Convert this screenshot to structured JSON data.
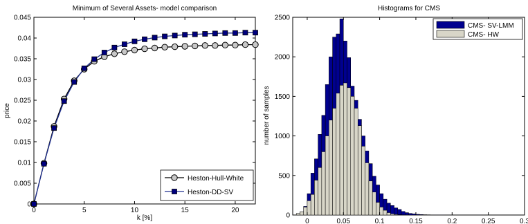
{
  "chart_data": [
    {
      "type": "line",
      "title": "Minimum of Several Assets- model comparison",
      "xlabel": "k [%]",
      "ylabel": "price",
      "xlim": [
        0,
        22
      ],
      "ylim": [
        0,
        0.045
      ],
      "xticks": [
        0,
        5,
        10,
        15,
        20
      ],
      "yticks": [
        0,
        0.005,
        0.01,
        0.015,
        0.02,
        0.025,
        0.03,
        0.035,
        0.04,
        0.045
      ],
      "ytick_labels": [
        "0",
        "0.005",
        "0.01",
        "0.015",
        "0.02",
        "0.025",
        "0.03",
        "0.035",
        "0.04",
        "0.045"
      ],
      "legend_position": "bottom-right",
      "series": [
        {
          "name": "Heston-Hull-White",
          "marker": "circle",
          "line_color": "#000000",
          "marker_fill": "#c8c8c8",
          "x": [
            0,
            1,
            2,
            3,
            4,
            5,
            6,
            7,
            8,
            9,
            10,
            11,
            12,
            13,
            14,
            15,
            16,
            17,
            18,
            19,
            20,
            21,
            22
          ],
          "values": [
            0,
            0.0098,
            0.0187,
            0.0253,
            0.0297,
            0.0325,
            0.0344,
            0.0355,
            0.0362,
            0.0367,
            0.0371,
            0.0374,
            0.0376,
            0.0378,
            0.0379,
            0.038,
            0.0381,
            0.0382,
            0.0382,
            0.0383,
            0.0383,
            0.0384,
            0.0384
          ]
        },
        {
          "name": "Heston-DD-SV",
          "marker": "square",
          "line_color": "#1f2f8f",
          "marker_fill": "#00007f",
          "x": [
            0,
            1,
            2,
            3,
            4,
            5,
            6,
            7,
            8,
            9,
            10,
            11,
            12,
            13,
            14,
            15,
            16,
            17,
            18,
            19,
            20,
            21,
            22
          ],
          "values": [
            0,
            0.0097,
            0.0183,
            0.0248,
            0.0294,
            0.0327,
            0.0349,
            0.0365,
            0.0377,
            0.0385,
            0.0392,
            0.0397,
            0.0401,
            0.0404,
            0.0406,
            0.0408,
            0.0409,
            0.041,
            0.0411,
            0.0412,
            0.0412,
            0.0413,
            0.0413
          ]
        }
      ]
    },
    {
      "type": "bar",
      "subtype": "histogram",
      "title": "Histograms for CMS",
      "xlabel": "",
      "ylabel": "number of samples",
      "xlim": [
        -0.02,
        0.3
      ],
      "ylim": [
        0,
        2500
      ],
      "xticks": [
        0,
        0.05,
        0.1,
        0.15,
        0.2,
        0.25,
        0.3
      ],
      "xtick_labels": [
        "0",
        "0.05",
        "0.1",
        "0.15",
        "0.2",
        "0.25",
        "0.3"
      ],
      "yticks": [
        0,
        500,
        1000,
        1500,
        2000,
        2500
      ],
      "ytick_labels": [
        "0",
        "500",
        "1000",
        "1500",
        "2000",
        "2500"
      ],
      "legend_position": "top-right",
      "bin_width": 0.005,
      "bin_start": -0.015,
      "series": [
        {
          "name": "CMS- SV-LMM",
          "color": "#00008f",
          "values": [
            15,
            40,
            110,
            270,
            530,
            710,
            1020,
            1260,
            1650,
            2000,
            2250,
            2290,
            2480,
            2200,
            1990,
            1630,
            1450,
            1210,
            1000,
            810,
            650,
            490,
            380,
            270,
            200,
            150,
            120,
            90,
            70,
            45,
            30,
            20,
            14,
            9,
            6,
            4,
            3,
            2,
            1,
            1,
            1,
            0,
            0,
            0,
            0,
            0,
            0,
            0,
            0,
            0,
            1,
            0,
            0,
            0,
            0,
            0,
            0,
            0,
            0,
            0,
            0,
            0,
            0,
            0
          ]
        },
        {
          "name": "CMS- HW",
          "color": "#d8d6c8",
          "values": [
            20,
            40,
            100,
            180,
            260,
            440,
            600,
            800,
            1000,
            1200,
            1350,
            1540,
            1640,
            1670,
            1610,
            1500,
            1350,
            1130,
            870,
            660,
            430,
            290,
            160,
            100,
            60,
            30,
            15,
            8,
            4,
            2,
            1,
            0,
            0,
            0,
            0,
            0,
            0,
            0,
            0,
            0,
            0,
            0,
            0,
            0,
            0,
            0,
            0,
            0,
            0,
            0,
            0,
            0,
            0,
            0,
            0,
            0,
            0,
            0,
            0,
            0,
            0,
            0,
            0,
            0
          ]
        }
      ]
    }
  ]
}
